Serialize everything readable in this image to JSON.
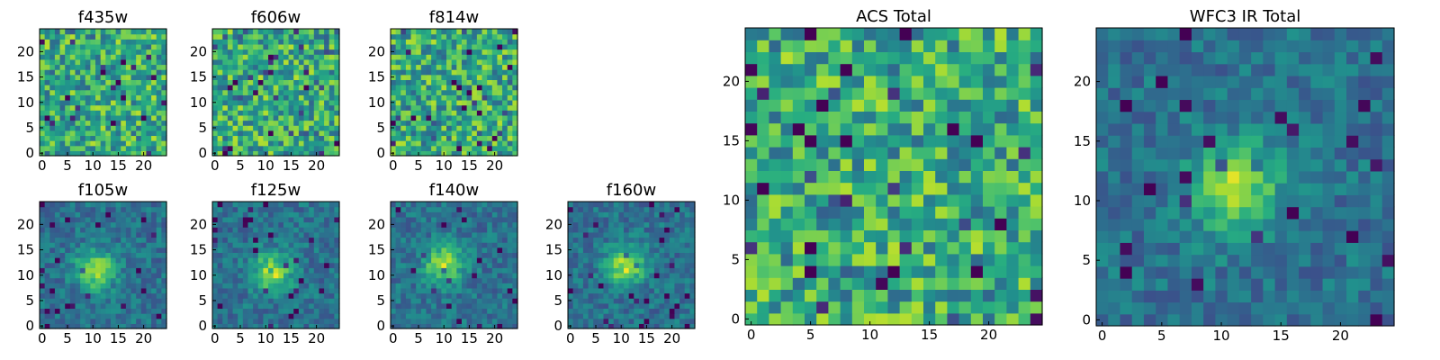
{
  "colormap": "viridis",
  "colors": {
    "low": "#440154",
    "mid": "#21918c",
    "high": "#fde725",
    "frame": "#000000"
  },
  "chart_data": [
    {
      "type": "heatmap",
      "title": "f435w",
      "group": "ACS",
      "seed": 11,
      "feature": "noise",
      "x_ticks": [
        "0",
        "5",
        "10",
        "15",
        "20"
      ],
      "y_ticks": [
        "0",
        "5",
        "10",
        "15",
        "20"
      ],
      "xlim": [
        0,
        25
      ],
      "ylim": [
        0,
        25
      ],
      "grid_size": 25
    },
    {
      "type": "heatmap",
      "title": "f606w",
      "group": "ACS",
      "seed": 23,
      "feature": "noise",
      "x_ticks": [
        "0",
        "5",
        "10",
        "15",
        "20"
      ],
      "y_ticks": [
        "0",
        "5",
        "10",
        "15",
        "20"
      ],
      "xlim": [
        0,
        25
      ],
      "ylim": [
        0,
        25
      ],
      "grid_size": 25
    },
    {
      "type": "heatmap",
      "title": "f814w",
      "group": "ACS",
      "seed": 37,
      "feature": "noise",
      "x_ticks": [
        "0",
        "5",
        "10",
        "15",
        "20"
      ],
      "y_ticks": [
        "0",
        "5",
        "10",
        "15",
        "20"
      ],
      "xlim": [
        0,
        25
      ],
      "ylim": [
        0,
        25
      ],
      "grid_size": 25
    },
    {
      "type": "heatmap",
      "title": "f105w",
      "group": "WFC3 IR",
      "seed": 41,
      "feature": "source",
      "x_ticks": [
        "0",
        "5",
        "10",
        "15",
        "20"
      ],
      "y_ticks": [
        "0",
        "5",
        "10",
        "15",
        "20"
      ],
      "xlim": [
        0,
        25
      ],
      "ylim": [
        0,
        25
      ],
      "grid_size": 25
    },
    {
      "type": "heatmap",
      "title": "f125w",
      "group": "WFC3 IR",
      "seed": 53,
      "feature": "source",
      "x_ticks": [
        "0",
        "5",
        "10",
        "15",
        "20"
      ],
      "y_ticks": [
        "0",
        "5",
        "10",
        "15",
        "20"
      ],
      "xlim": [
        0,
        25
      ],
      "ylim": [
        0,
        25
      ],
      "grid_size": 25
    },
    {
      "type": "heatmap",
      "title": "f140w",
      "group": "WFC3 IR",
      "seed": 67,
      "feature": "source",
      "x_ticks": [
        "0",
        "5",
        "10",
        "15",
        "20"
      ],
      "y_ticks": [
        "0",
        "5",
        "10",
        "15",
        "20"
      ],
      "xlim": [
        0,
        25
      ],
      "ylim": [
        0,
        25
      ],
      "grid_size": 25
    },
    {
      "type": "heatmap",
      "title": "f160w",
      "group": "WFC3 IR",
      "seed": 79,
      "feature": "source",
      "x_ticks": [
        "0",
        "5",
        "10",
        "15",
        "20"
      ],
      "y_ticks": [
        "0",
        "5",
        "10",
        "15",
        "20"
      ],
      "xlim": [
        0,
        25
      ],
      "ylim": [
        0,
        25
      ],
      "grid_size": 25
    },
    {
      "type": "heatmap",
      "title": "ACS Total",
      "group": "ACS",
      "seed": 83,
      "feature": "noise",
      "x_ticks": [
        "0",
        "5",
        "10",
        "15",
        "20"
      ],
      "y_ticks": [
        "0",
        "5",
        "10",
        "15",
        "20"
      ],
      "xlim": [
        0,
        25
      ],
      "ylim": [
        0,
        25
      ],
      "grid_size": 25
    },
    {
      "type": "heatmap",
      "title": "WFC3 IR Total",
      "group": "WFC3 IR",
      "seed": 97,
      "feature": "source",
      "x_ticks": [
        "0",
        "5",
        "10",
        "15",
        "20"
      ],
      "y_ticks": [
        "0",
        "5",
        "10",
        "15",
        "20"
      ],
      "xlim": [
        0,
        25
      ],
      "ylim": [
        0,
        25
      ],
      "grid_size": 25
    }
  ]
}
